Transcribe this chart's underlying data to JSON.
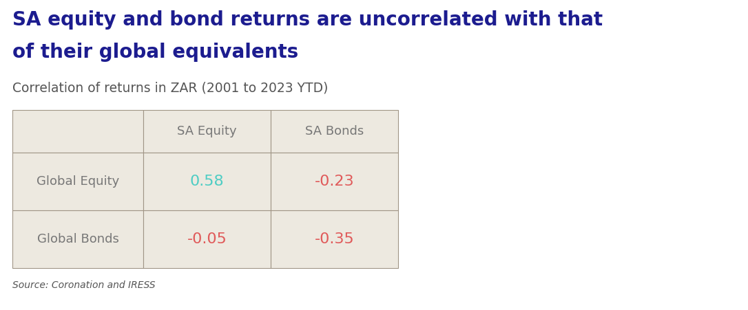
{
  "title_line1": "SA equity and bond returns are uncorrelated with that",
  "title_line2": "of their global equivalents",
  "subtitle": "Correlation of returns in ZAR (2001 to 2023 YTD)",
  "source": "Source: Coronation and IRESS",
  "title_color": "#1c1c8f",
  "subtitle_color": "#555555",
  "source_color": "#555555",
  "col_headers": [
    "",
    "SA Equity",
    "SA Bonds"
  ],
  "row_headers": [
    "Global Equity",
    "Global Bonds"
  ],
  "values": [
    [
      "0.58",
      "-0.23"
    ],
    [
      "-0.05",
      "-0.35"
    ]
  ],
  "value_colors": [
    [
      "#4ecdc4",
      "#e05a5a"
    ],
    [
      "#e05a5a",
      "#e05a5a"
    ]
  ],
  "header_text_color": "#777777",
  "row_text_color": "#777777",
  "table_bg_color": "#ede9e0",
  "table_border_color": "#a09585",
  "background_color": "#ffffff",
  "fig_width": 10.86,
  "fig_height": 4.51,
  "dpi": 100
}
